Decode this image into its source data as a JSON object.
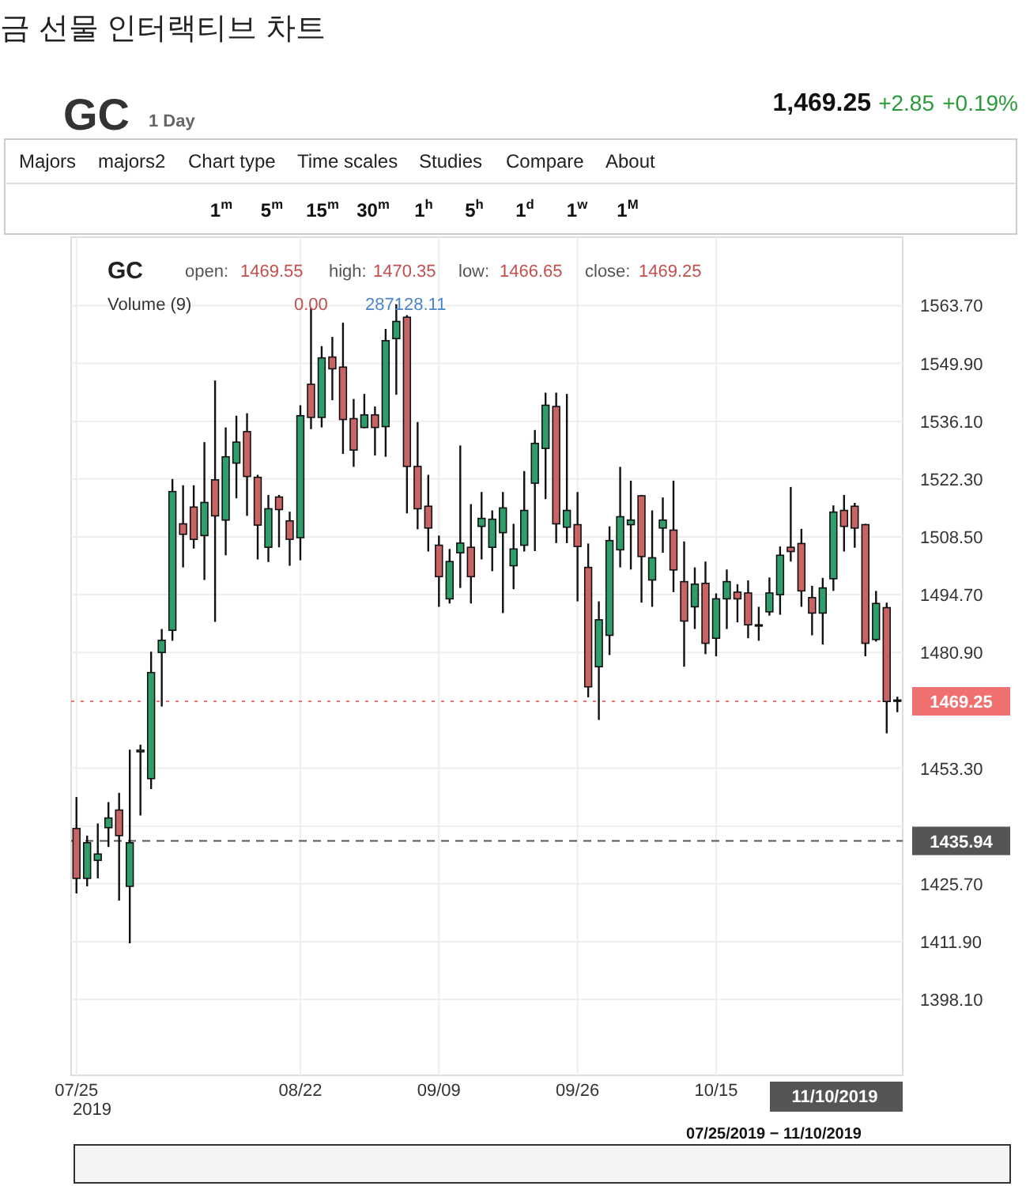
{
  "chart_data": {
    "type": "candlestick",
    "title": "금 선물 인터랙티브 차트",
    "categories": [
      "07/25",
      null,
      null,
      null,
      null,
      null,
      null,
      null,
      null,
      null,
      null,
      null,
      null,
      null,
      null,
      null,
      null,
      null,
      null,
      null,
      null,
      "08/22",
      null,
      null,
      null,
      null,
      null,
      null,
      null,
      null,
      null,
      null,
      null,
      null,
      "09/09",
      null,
      null,
      null,
      null,
      null,
      null,
      null,
      null,
      null,
      null,
      null,
      null,
      "09/26",
      null,
      null,
      null,
      null,
      null,
      null,
      null,
      null,
      null,
      null,
      null,
      null,
      "10/15",
      null,
      null,
      null,
      null,
      null,
      null,
      null,
      null,
      null,
      null,
      null,
      null,
      null,
      null,
      null,
      null,
      null
    ],
    "ohlc": [
      [
        1438.9,
        1446.4,
        1423.4,
        1427.0
      ],
      [
        1427.0,
        1437.2,
        1425.1,
        1435.5
      ],
      [
        1431.3,
        1440.1,
        1427.0,
        1432.8
      ],
      [
        1439.1,
        1445.2,
        1434.5,
        1441.4
      ],
      [
        1443.3,
        1447.4,
        1421.7,
        1437.2
      ],
      [
        1425.1,
        1457.7,
        1411.5,
        1435.5
      ],
      [
        1457.2,
        1458.9,
        1442.0,
        1457.6
      ],
      [
        1450.8,
        1481.1,
        1448.3,
        1476.1
      ],
      [
        1480.9,
        1486.5,
        1468.0,
        1483.8
      ],
      [
        1486.2,
        1522.3,
        1483.7,
        1519.3
      ],
      [
        1511.6,
        1520.8,
        1501.2,
        1509.1
      ],
      [
        1515.6,
        1520.8,
        1505.7,
        1507.9
      ],
      [
        1508.8,
        1531.1,
        1498.2,
        1516.7
      ],
      [
        1522.1,
        1545.8,
        1488.2,
        1513.5
      ],
      [
        1512.5,
        1534.6,
        1504.1,
        1527.6
      ],
      [
        1526.1,
        1537.4,
        1517.7,
        1531.1
      ],
      [
        1533.6,
        1538.0,
        1513.5,
        1522.9
      ],
      [
        1522.7,
        1523.3,
        1503.1,
        1511.3
      ],
      [
        1506.0,
        1518.5,
        1502.5,
        1515.2
      ],
      [
        1518.0,
        1518.5,
        1506.0,
        1515.0
      ],
      [
        1512.3,
        1514.5,
        1501.6,
        1507.9
      ],
      [
        1508.3,
        1539.9,
        1502.9,
        1537.4
      ],
      [
        1544.9,
        1563.1,
        1534.2,
        1537.0
      ],
      [
        1537.0,
        1554.0,
        1534.6,
        1551.2
      ],
      [
        1551.4,
        1556.2,
        1541.1,
        1548.6
      ],
      [
        1549.0,
        1559.6,
        1528.3,
        1536.5
      ],
      [
        1536.7,
        1541.4,
        1525.2,
        1529.2
      ],
      [
        1534.6,
        1542.6,
        1534.4,
        1537.6
      ],
      [
        1537.6,
        1539.6,
        1527.9,
        1534.6
      ],
      [
        1534.8,
        1558.1,
        1527.6,
        1555.3
      ],
      [
        1555.8,
        1564.0,
        1542.4,
        1559.9
      ],
      [
        1560.9,
        1561.4,
        1514.1,
        1525.3
      ],
      [
        1525.3,
        1535.9,
        1510.3,
        1515.2
      ],
      [
        1515.8,
        1523.3,
        1505.0,
        1510.6
      ],
      [
        1506.5,
        1508.8,
        1491.8,
        1499.0
      ],
      [
        1493.7,
        1505.6,
        1492.6,
        1502.6
      ],
      [
        1504.7,
        1530.3,
        1496.3,
        1507.0
      ],
      [
        1506.0,
        1516.3,
        1492.6,
        1499.0
      ],
      [
        1511.0,
        1519.2,
        1503.1,
        1512.9
      ],
      [
        1506.0,
        1514.8,
        1500.3,
        1512.7
      ],
      [
        1509.5,
        1519.2,
        1490.3,
        1515.4
      ],
      [
        1501.6,
        1511.6,
        1496.0,
        1505.6
      ],
      [
        1506.5,
        1524.2,
        1505.0,
        1514.8
      ],
      [
        1521.3,
        1534.0,
        1505.1,
        1530.8
      ],
      [
        1529.6,
        1542.9,
        1517.5,
        1539.9
      ],
      [
        1539.6,
        1542.9,
        1507.0,
        1511.6
      ],
      [
        1510.8,
        1542.6,
        1507.0,
        1514.8
      ],
      [
        1511.4,
        1519.2,
        1493.1,
        1506.2
      ],
      [
        1501.2,
        1506.9,
        1470.2,
        1472.7
      ],
      [
        1477.5,
        1493.1,
        1464.8,
        1488.7
      ],
      [
        1485.0,
        1511.0,
        1480.3,
        1507.6
      ],
      [
        1505.4,
        1525.2,
        1501.2,
        1513.3
      ],
      [
        1511.4,
        1521.9,
        1500.7,
        1512.5
      ],
      [
        1518.3,
        1518.5,
        1492.8,
        1503.8
      ],
      [
        1498.2,
        1514.8,
        1491.8,
        1503.5
      ],
      [
        1510.6,
        1517.9,
        1504.7,
        1512.5
      ],
      [
        1510.1,
        1521.9,
        1495.3,
        1500.6
      ],
      [
        1497.8,
        1507.4,
        1477.5,
        1488.4
      ],
      [
        1491.8,
        1501.2,
        1486.5,
        1497.2
      ],
      [
        1497.4,
        1502.6,
        1480.5,
        1483.1
      ],
      [
        1484.3,
        1495.0,
        1480.0,
        1493.7
      ],
      [
        1493.7,
        1500.7,
        1486.5,
        1497.8
      ],
      [
        1495.3,
        1497.2,
        1488.1,
        1493.7
      ],
      [
        1495.1,
        1498.1,
        1484.3,
        1487.5
      ],
      [
        1487.5,
        1491.8,
        1483.7,
        1487.2
      ],
      [
        1490.6,
        1498.8,
        1489.7,
        1495.1
      ],
      [
        1494.7,
        1506.2,
        1489.9,
        1504.1
      ],
      [
        1506.0,
        1520.4,
        1502.6,
        1505.0
      ],
      [
        1506.9,
        1510.4,
        1491.8,
        1495.6
      ],
      [
        1494.0,
        1496.8,
        1485.0,
        1490.3
      ],
      [
        1490.3,
        1498.7,
        1482.8,
        1496.3
      ],
      [
        1498.5,
        1516.0,
        1495.6,
        1514.4
      ],
      [
        1514.8,
        1518.5,
        1505.0,
        1511.0
      ],
      [
        1515.8,
        1516.6,
        1505.9,
        1510.6
      ],
      [
        1511.4,
        1511.6,
        1480.0,
        1483.1
      ],
      [
        1484.0,
        1495.6,
        1483.5,
        1492.6
      ],
      [
        1491.6,
        1492.8,
        1461.6,
        1469.2
      ],
      [
        1469.55,
        1470.35,
        1466.65,
        1469.25
      ]
    ],
    "colors": [
      "#c86464",
      "#2f9e6a",
      "#2f9e6a",
      "#2f9e6a",
      "#c86464",
      "#2f9e6a",
      "#2f9e6a",
      "#2f9e6a",
      "#2f9e6a",
      "#2f9e6a",
      "#c86464",
      "#c86464",
      "#2f9e6a",
      "#c86464",
      "#2f9e6a",
      "#2f9e6a",
      "#c86464",
      "#c86464",
      "#2f9e6a",
      "#c86464",
      "#c86464",
      "#2f9e6a",
      "#c86464",
      "#2f9e6a",
      "#c86464",
      "#c86464",
      "#c86464",
      "#2f9e6a",
      "#c86464",
      "#2f9e6a",
      "#2f9e6a",
      "#c86464",
      "#c86464",
      "#c86464",
      "#c86464",
      "#2f9e6a",
      "#2f9e6a",
      "#c86464",
      "#2f9e6a",
      "#2f9e6a",
      "#2f9e6a",
      "#2f9e6a",
      "#2f9e6a",
      "#2f9e6a",
      "#2f9e6a",
      "#c86464",
      "#2f9e6a",
      "#c86464",
      "#c86464",
      "#2f9e6a",
      "#2f9e6a",
      "#2f9e6a",
      "#2f9e6a",
      "#c86464",
      "#2f9e6a",
      "#2f9e6a",
      "#c86464",
      "#c86464",
      "#2f9e6a",
      "#c86464",
      "#2f9e6a",
      "#2f9e6a",
      "#c86464",
      "#c86464",
      "#c86464",
      "#2f9e6a",
      "#2f9e6a",
      "#c86464",
      "#c86464",
      "#c86464",
      "#2f9e6a",
      "#2f9e6a",
      "#c86464",
      "#c86464",
      "#c86464",
      "#2f9e6a",
      "#c86464",
      "#c86464"
    ],
    "ylim": [
      1380,
      1580
    ],
    "yticks": [
      {
        "value": 1563.7,
        "label": "1563.70"
      },
      {
        "value": 1549.9,
        "label": "1549.90"
      },
      {
        "value": 1536.1,
        "label": "1536.10"
      },
      {
        "value": 1522.3,
        "label": "1522.30"
      },
      {
        "value": 1508.5,
        "label": "1508.50"
      },
      {
        "value": 1494.7,
        "label": "1494.70"
      },
      {
        "value": 1480.9,
        "label": "1480.90"
      },
      {
        "value": 1453.3,
        "label": "1453.30"
      },
      {
        "value": 1439.5,
        "label": null
      },
      {
        "value": 1425.7,
        "label": "1425.70"
      },
      {
        "value": 1411.9,
        "label": "1411.90"
      },
      {
        "value": 1398.1,
        "label": "1398.10"
      }
    ],
    "grid": true,
    "ref_lines": [
      {
        "axis": "y",
        "value": 1469.25,
        "label": "1469.25",
        "color": "#f07070",
        "line_style": "dotted"
      },
      {
        "axis": "y",
        "value": 1435.94,
        "label": "1435.94",
        "color": "#555555",
        "line_style": "dashed"
      }
    ],
    "annotations": [
      "GC",
      "1 Day",
      "1,469.25",
      "+2.85",
      "+0.19%",
      "Majors",
      "majors2",
      "Chart type",
      "Time scales",
      "Studies",
      "Compare",
      "About",
      "1$^{m}$",
      "5$^{m}$",
      "15$^{m}$",
      "30$^{m}$",
      "1$^{h}$",
      "5$^{h}$",
      "1$^{d}$",
      "1$^{w}$",
      "1$^{M}$",
      "GC",
      "open:",
      "1469.55",
      "high:",
      "1470.35",
      "low:",
      "1466.65",
      "close:",
      "1469.25",
      "Volume (9)",
      "0.00",
      "287128.11",
      "2019",
      "11/10/2019",
      "07/25/2019 − 11/10/2019"
    ]
  }
}
